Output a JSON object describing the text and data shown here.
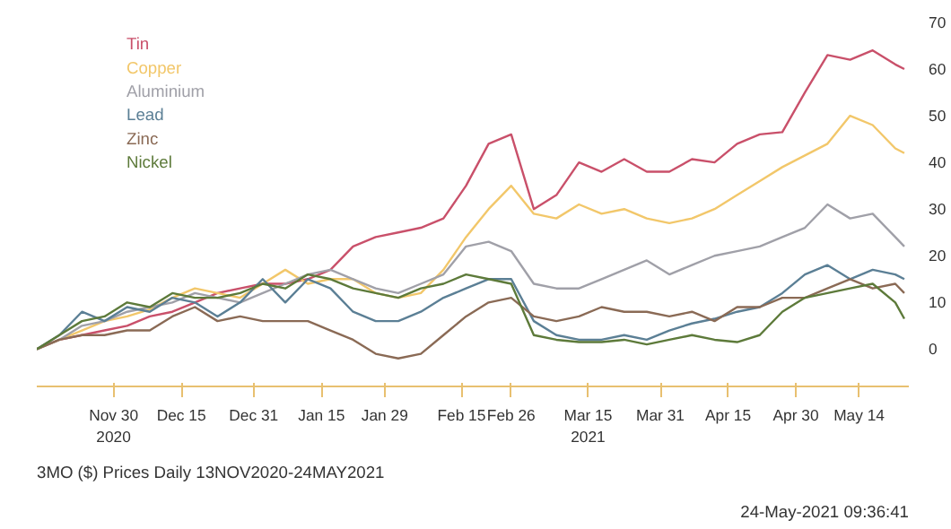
{
  "chart_data": {
    "type": "line",
    "x": [
      "2020-11-13",
      "2020-11-18",
      "2020-11-23",
      "2020-11-28",
      "2020-12-03",
      "2020-12-08",
      "2020-12-13",
      "2020-12-18",
      "2020-12-23",
      "2020-12-28",
      "2021-01-02",
      "2021-01-07",
      "2021-01-12",
      "2021-01-17",
      "2021-01-22",
      "2021-01-27",
      "2021-02-01",
      "2021-02-06",
      "2021-02-11",
      "2021-02-16",
      "2021-02-21",
      "2021-02-26",
      "2021-03-03",
      "2021-03-08",
      "2021-03-13",
      "2021-03-18",
      "2021-03-23",
      "2021-03-28",
      "2021-04-02",
      "2021-04-07",
      "2021-04-12",
      "2021-04-17",
      "2021-04-22",
      "2021-04-27",
      "2021-05-02",
      "2021-05-07",
      "2021-05-12",
      "2021-05-17",
      "2021-05-22",
      "2021-05-24"
    ],
    "series": [
      {
        "name": "Tin",
        "color": "#c9506a",
        "values": [
          0,
          2,
          3,
          4,
          5,
          7,
          8,
          10,
          12,
          13,
          14,
          14,
          15,
          17,
          22,
          24,
          25,
          26,
          28,
          35,
          44,
          46,
          30,
          33,
          40,
          38,
          40.7,
          38,
          38,
          40.7,
          40,
          44,
          46,
          46.5,
          55,
          63,
          62,
          64,
          61,
          60
        ]
      },
      {
        "name": "Copper",
        "color": "#f2c76a",
        "values": [
          0,
          2,
          4,
          6,
          7,
          8.5,
          11,
          13,
          12,
          11,
          14,
          17,
          14,
          15,
          15,
          12,
          11,
          12,
          17,
          24,
          30,
          35,
          29,
          28,
          31,
          29,
          30,
          28,
          27,
          28,
          30,
          33,
          36,
          39,
          41.5,
          44,
          50,
          48,
          43,
          42
        ]
      },
      {
        "name": "Aluminium",
        "color": "#a0a0a8",
        "values": [
          0,
          2,
          5,
          6,
          8,
          9,
          10,
          12,
          11,
          10,
          12,
          14,
          16,
          17,
          15,
          13,
          12,
          14,
          16,
          22,
          23,
          21,
          14,
          13,
          13,
          15,
          17,
          19,
          16,
          18,
          20,
          21,
          22,
          24,
          26,
          31,
          28,
          29,
          24,
          22
        ]
      },
      {
        "name": "Lead",
        "color": "#5b7f95",
        "values": [
          0,
          3,
          8,
          6,
          9,
          8,
          11,
          10,
          7,
          10,
          15,
          10,
          15,
          13,
          8,
          6,
          6,
          8,
          11,
          13,
          15,
          15,
          6,
          3,
          2,
          2,
          3,
          2,
          4,
          5.5,
          6.5,
          8,
          9,
          12,
          16,
          18,
          15,
          17,
          16,
          15
        ]
      },
      {
        "name": "Zinc",
        "color": "#8a6a55",
        "values": [
          0,
          2,
          3,
          3,
          4,
          4,
          7,
          9,
          6,
          7,
          6,
          6,
          6,
          4,
          2,
          -1,
          -2,
          -1,
          3,
          7,
          10,
          11,
          7,
          6,
          7,
          9,
          8,
          8,
          7,
          8,
          6,
          9,
          9,
          11,
          11,
          13,
          15,
          13,
          14,
          12
        ]
      },
      {
        "name": "Nickel",
        "color": "#5d7a3a",
        "values": [
          0,
          3,
          6,
          7,
          10,
          9,
          12,
          11,
          11,
          12,
          14,
          13,
          16,
          15,
          13,
          12,
          11,
          13,
          14,
          16,
          15,
          14,
          3,
          2,
          1.5,
          1.5,
          2,
          1,
          2,
          3,
          2,
          1.5,
          3,
          8,
          11,
          12,
          13,
          14,
          10,
          6.5
        ]
      }
    ],
    "xlim": [
      "2020-11-13",
      "2021-05-25"
    ],
    "xticks": [
      {
        "value": "2020-11-30",
        "label": "Nov 30\n2020"
      },
      {
        "value": "2020-12-15",
        "label": "Dec 15"
      },
      {
        "value": "2020-12-31",
        "label": "Dec 31"
      },
      {
        "value": "2021-01-15",
        "label": "Jan 15"
      },
      {
        "value": "2021-01-29",
        "label": "Jan 29"
      },
      {
        "value": "2021-02-15",
        "label": "Feb 15"
      },
      {
        "value": "2021-02-26",
        "label": "Feb 26"
      },
      {
        "value": "2021-03-15",
        "label": "Mar 15\n2021"
      },
      {
        "value": "2021-03-31",
        "label": "Mar 31"
      },
      {
        "value": "2021-04-15",
        "label": "Apr 15"
      },
      {
        "value": "2021-04-30",
        "label": "Apr 30"
      },
      {
        "value": "2021-05-14",
        "label": "May 14"
      }
    ],
    "ylim": [
      -8,
      70
    ],
    "yticks": [
      0,
      10,
      20,
      30,
      40,
      50,
      60,
      70
    ],
    "legend": "top left",
    "grid": false,
    "annotations": [
      "3MO ($) Prices  Daily 13NOV2020-24MAY2021",
      "24-May-2021 09:36:41"
    ]
  }
}
